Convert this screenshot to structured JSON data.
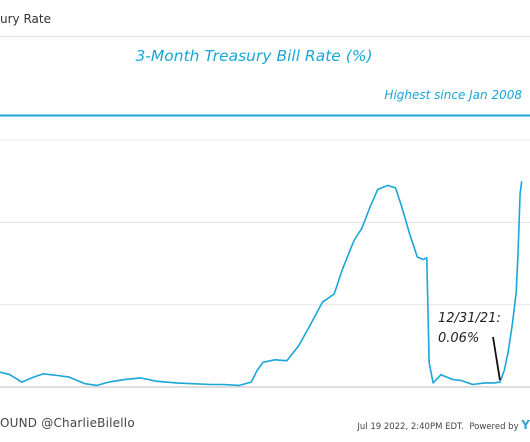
{
  "header": {
    "title": "ury Rate"
  },
  "chart_data": {
    "type": "line",
    "title": "3-Month Treasury Bill Rate (%)",
    "xlabel": "",
    "ylabel": "",
    "xlim": [
      2009.35,
      2022.75
    ],
    "ylim": [
      0,
      3.5
    ],
    "x_ticks": [
      "2010",
      "2012",
      "2014",
      "2016",
      "2018",
      "2020",
      "2022"
    ],
    "y_gridlines": [
      1,
      2,
      3
    ],
    "grid": "horizontal",
    "color": "#1aa6d8",
    "reference_line": {
      "value": 3.3,
      "label": "Highest since Jan 2008"
    },
    "annotation": {
      "line1": "12/31/21:",
      "line2": "0.06%",
      "x": 2021.99,
      "y": 0.06
    },
    "series": [
      {
        "points": [
          [
            2009.35,
            0.18
          ],
          [
            2009.6,
            0.15
          ],
          [
            2009.9,
            0.06
          ],
          [
            2010.2,
            0.12
          ],
          [
            2010.45,
            0.16
          ],
          [
            2010.8,
            0.14
          ],
          [
            2011.1,
            0.12
          ],
          [
            2011.5,
            0.04
          ],
          [
            2011.8,
            0.02
          ],
          [
            2012.1,
            0.06
          ],
          [
            2012.5,
            0.09
          ],
          [
            2012.9,
            0.11
          ],
          [
            2013.3,
            0.07
          ],
          [
            2013.8,
            0.05
          ],
          [
            2014.2,
            0.04
          ],
          [
            2014.7,
            0.03
          ],
          [
            2015.0,
            0.03
          ],
          [
            2015.4,
            0.02
          ],
          [
            2015.7,
            0.06
          ],
          [
            2015.85,
            0.2
          ],
          [
            2016.0,
            0.3
          ],
          [
            2016.3,
            0.33
          ],
          [
            2016.6,
            0.32
          ],
          [
            2016.9,
            0.5
          ],
          [
            2017.2,
            0.76
          ],
          [
            2017.5,
            1.03
          ],
          [
            2017.8,
            1.13
          ],
          [
            2018.0,
            1.42
          ],
          [
            2018.3,
            1.78
          ],
          [
            2018.5,
            1.93
          ],
          [
            2018.7,
            2.18
          ],
          [
            2018.9,
            2.4
          ],
          [
            2019.0,
            2.42
          ],
          [
            2019.15,
            2.45
          ],
          [
            2019.35,
            2.42
          ],
          [
            2019.5,
            2.2
          ],
          [
            2019.7,
            1.87
          ],
          [
            2019.9,
            1.58
          ],
          [
            2020.05,
            1.55
          ],
          [
            2020.14,
            1.57
          ],
          [
            2020.2,
            0.3
          ],
          [
            2020.3,
            0.05
          ],
          [
            2020.5,
            0.15
          ],
          [
            2020.8,
            0.09
          ],
          [
            2021.0,
            0.08
          ],
          [
            2021.3,
            0.03
          ],
          [
            2021.6,
            0.05
          ],
          [
            2021.85,
            0.05
          ],
          [
            2021.99,
            0.06
          ],
          [
            2022.1,
            0.2
          ],
          [
            2022.2,
            0.43
          ],
          [
            2022.3,
            0.75
          ],
          [
            2022.4,
            1.15
          ],
          [
            2022.45,
            1.65
          ],
          [
            2022.5,
            2.35
          ],
          [
            2022.54,
            2.5
          ]
        ]
      }
    ]
  },
  "footer": {
    "left": "OUND @CharlieBilello",
    "timestamp": "Jul 19 2022, 2:40PM EDT.",
    "powered_by": "Powered by",
    "brand": "Y"
  }
}
